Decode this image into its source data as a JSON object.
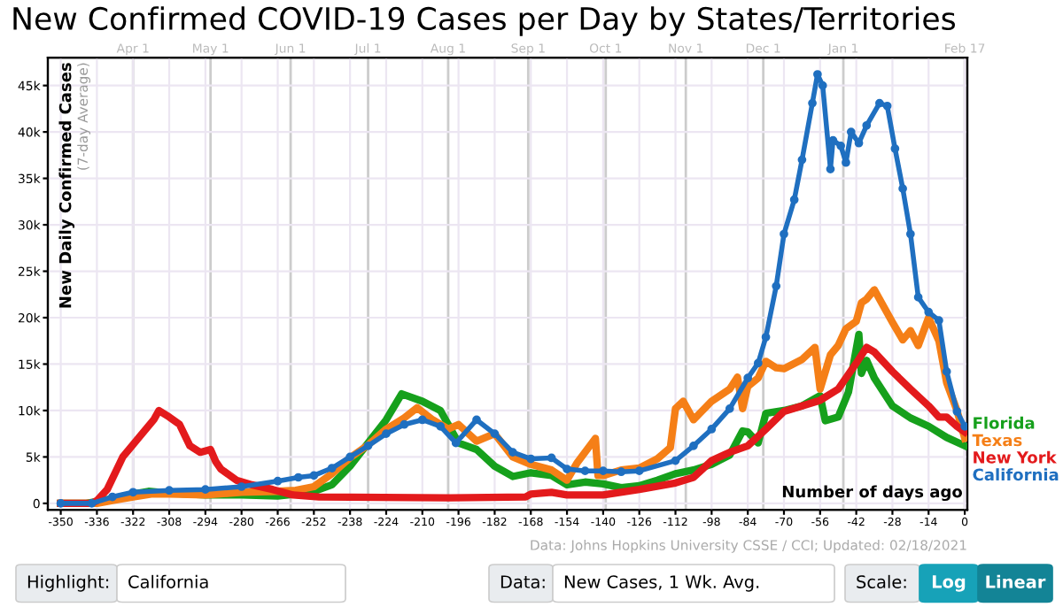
{
  "chart_data": {
    "type": "line",
    "title": "New Confirmed COVID-19 Cases per Day by States/Territories",
    "ylabel": "New Daily Confirmed Cases",
    "xlabel": "Number of days ago",
    "annotations": [
      "(7-day Average)",
      "Data: Johns Hopkins University CSSE / CCI; Updated: 02/18/2021",
      "Highlight:",
      "California",
      "Data:",
      "New Cases, 1 Wk. Avg.",
      "Scale:",
      "Log",
      "Linear"
    ],
    "xlim": [
      -355,
      1
    ],
    "ylim": [
      -700,
      48000
    ],
    "xticks": [
      -350,
      -336,
      -322,
      -308,
      -294,
      -280,
      -266,
      -252,
      -238,
      -224,
      -210,
      -196,
      -182,
      -168,
      -154,
      -140,
      -126,
      -112,
      -98,
      -84,
      -70,
      -56,
      -42,
      -28,
      -14,
      0
    ],
    "yticks": [
      0,
      {
        "value": 5000,
        "label": "5k"
      },
      {
        "value": 10000,
        "label": "10k"
      },
      {
        "value": 15000,
        "label": "15k"
      },
      {
        "value": 20000,
        "label": "20k"
      },
      {
        "value": 25000,
        "label": "25k"
      },
      {
        "value": 30000,
        "label": "30k"
      },
      {
        "value": 35000,
        "label": "35k"
      },
      {
        "value": 40000,
        "label": "40k"
      },
      {
        "value": 45000,
        "label": "45k"
      }
    ],
    "x2lim": [
      "2020-02-28",
      "2021-02-18"
    ],
    "x2ticks": [
      {
        "value": "2020-04-01",
        "label": "Apr 1"
      },
      {
        "value": "2020-05-01",
        "label": "May 1"
      },
      {
        "value": "2020-06-01",
        "label": "Jun 1"
      },
      {
        "value": "2020-07-01",
        "label": "Jul 1"
      },
      {
        "value": "2020-08-01",
        "label": "Aug 1"
      },
      {
        "value": "2020-09-01",
        "label": "Sep 1"
      },
      {
        "value": "2020-10-01",
        "label": "Oct 1"
      },
      {
        "value": "2020-11-01",
        "label": "Nov 1"
      },
      {
        "value": "2020-12-01",
        "label": "Dec 1"
      },
      {
        "value": "2021-01-01",
        "label": "Jan 1"
      },
      {
        "value": "2021-02-17",
        "label": "Feb 17"
      }
    ],
    "grid": true,
    "legend": false,
    "line_style": "solid",
    "series": [
      {
        "name": "Florida",
        "color": "#16a01c",
        "marker": "none",
        "x": [
          -350,
          -340,
          -330,
          -322,
          -316,
          -308,
          -294,
          -280,
          -266,
          -259,
          -252,
          -245,
          -238,
          -231,
          -224,
          -218,
          -210,
          -203,
          -196,
          -189,
          -182,
          -175,
          -168,
          -160,
          -154,
          -147,
          -140,
          -133,
          -126,
          -119,
          -112,
          -105,
          -98,
          -91,
          -86,
          -84,
          -80,
          -77,
          -70,
          -63,
          -56,
          -54,
          -49,
          -45,
          -41,
          -40,
          -38,
          -35,
          -28,
          -21,
          -14,
          -7,
          0
        ],
        "values": [
          0,
          0,
          500,
          1000,
          1300,
          1100,
          900,
          900,
          800,
          1000,
          1300,
          2000,
          4000,
          6500,
          9000,
          11800,
          11000,
          10000,
          6500,
          5800,
          4000,
          2900,
          3300,
          3000,
          2000,
          2300,
          2100,
          1700,
          1900,
          2500,
          3200,
          3600,
          4200,
          5200,
          7800,
          7700,
          6500,
          9700,
          10000,
          10500,
          11600,
          8900,
          9300,
          12000,
          18200,
          14000,
          15400,
          13500,
          10500,
          9200,
          8300,
          7100,
          6200
        ]
      },
      {
        "name": "Texas",
        "color": "#f57f17",
        "marker": "none",
        "x": [
          -350,
          -336,
          -330,
          -322,
          -315,
          -308,
          -294,
          -280,
          -266,
          -259,
          -252,
          -245,
          -238,
          -231,
          -224,
          -217,
          -212,
          -206,
          -200,
          -196,
          -189,
          -182,
          -175,
          -168,
          -160,
          -154,
          -150,
          -143,
          -142,
          -140,
          -133,
          -126,
          -119,
          -114,
          -112,
          -109,
          -105,
          -98,
          -91,
          -88,
          -86,
          -84,
          -80,
          -77,
          -73,
          -70,
          -63,
          -58,
          -56,
          -52,
          -49,
          -46,
          -42,
          -40,
          -38,
          -35,
          -32,
          -28,
          -24,
          -21,
          -18,
          -14,
          -10,
          -7,
          -3,
          0
        ],
        "values": [
          0,
          0,
          300,
          700,
          1000,
          1000,
          900,
          1200,
          1300,
          1400,
          1800,
          3200,
          4900,
          6300,
          8000,
          9200,
          10300,
          9000,
          8000,
          8500,
          6700,
          7500,
          5000,
          4200,
          3600,
          2500,
          4400,
          7000,
          3000,
          3000,
          3600,
          3800,
          4800,
          6000,
          10200,
          11000,
          9000,
          11000,
          12300,
          13600,
          10200,
          12600,
          13500,
          15300,
          14600,
          14500,
          15500,
          16800,
          12300,
          16000,
          17000,
          18800,
          19600,
          21600,
          22000,
          23000,
          21500,
          19500,
          17600,
          18600,
          17000,
          20000,
          17500,
          13000,
          10000,
          7000
        ]
      },
      {
        "name": "New York",
        "color": "#e31a1c",
        "marker": "none",
        "x": [
          -350,
          -338,
          -336,
          -332,
          -326,
          -320,
          -314,
          -312,
          -308,
          -304,
          -300,
          -296,
          -292,
          -290,
          -288,
          -282,
          -276,
          -268,
          -260,
          -250,
          -200,
          -170,
          -168,
          -160,
          -154,
          -140,
          -126,
          -112,
          -105,
          -98,
          -91,
          -84,
          -77,
          -70,
          -63,
          -56,
          -49,
          -42,
          -38,
          -35,
          -28,
          -21,
          -14,
          -10,
          -7,
          -3,
          0
        ],
        "values": [
          0,
          0,
          300,
          1500,
          5000,
          7000,
          9000,
          10000,
          9300,
          8500,
          6200,
          5500,
          5800,
          4500,
          3700,
          2500,
          2000,
          1500,
          900,
          700,
          600,
          700,
          1000,
          1200,
          900,
          900,
          1500,
          2200,
          2800,
          4600,
          5500,
          6200,
          8000,
          9900,
          10500,
          11100,
          12300,
          15100,
          16800,
          16300,
          14200,
          12300,
          10500,
          9300,
          9300,
          8300,
          7700
        ]
      },
      {
        "name": "California",
        "color": "#1f6fc0",
        "marker": "circle",
        "x": [
          -350,
          -338,
          -330,
          -322,
          -308,
          -294,
          -280,
          -266,
          -258,
          -252,
          -245,
          -238,
          -231,
          -224,
          -217,
          -210,
          -203,
          -197,
          -189,
          -182,
          -175,
          -168,
          -160,
          -154,
          -147,
          -140,
          -133,
          -126,
          -112,
          -105,
          -98,
          -91,
          -84,
          -80,
          -77,
          -73,
          -70,
          -66,
          -63,
          -59,
          -57,
          -55,
          -52,
          -51,
          -48,
          -46,
          -44,
          -41,
          -38,
          -33,
          -30,
          -27,
          -24,
          -21,
          -18,
          -14,
          -10,
          -7,
          -3,
          0
        ],
        "values": [
          0,
          0,
          700,
          1200,
          1400,
          1500,
          1800,
          2400,
          2800,
          3000,
          3800,
          5000,
          6200,
          7500,
          8500,
          9000,
          8300,
          6500,
          9000,
          7500,
          5500,
          4800,
          4900,
          3700,
          3500,
          3500,
          3400,
          3500,
          4600,
          6200,
          8000,
          10200,
          13500,
          15100,
          17900,
          23400,
          29000,
          32700,
          37000,
          43100,
          46200,
          45000,
          36000,
          39100,
          38500,
          36700,
          40000,
          38800,
          40700,
          43100,
          42800,
          38200,
          33900,
          29000,
          22200,
          20600,
          19700,
          14200,
          9900,
          8300
        ]
      }
    ]
  }
}
